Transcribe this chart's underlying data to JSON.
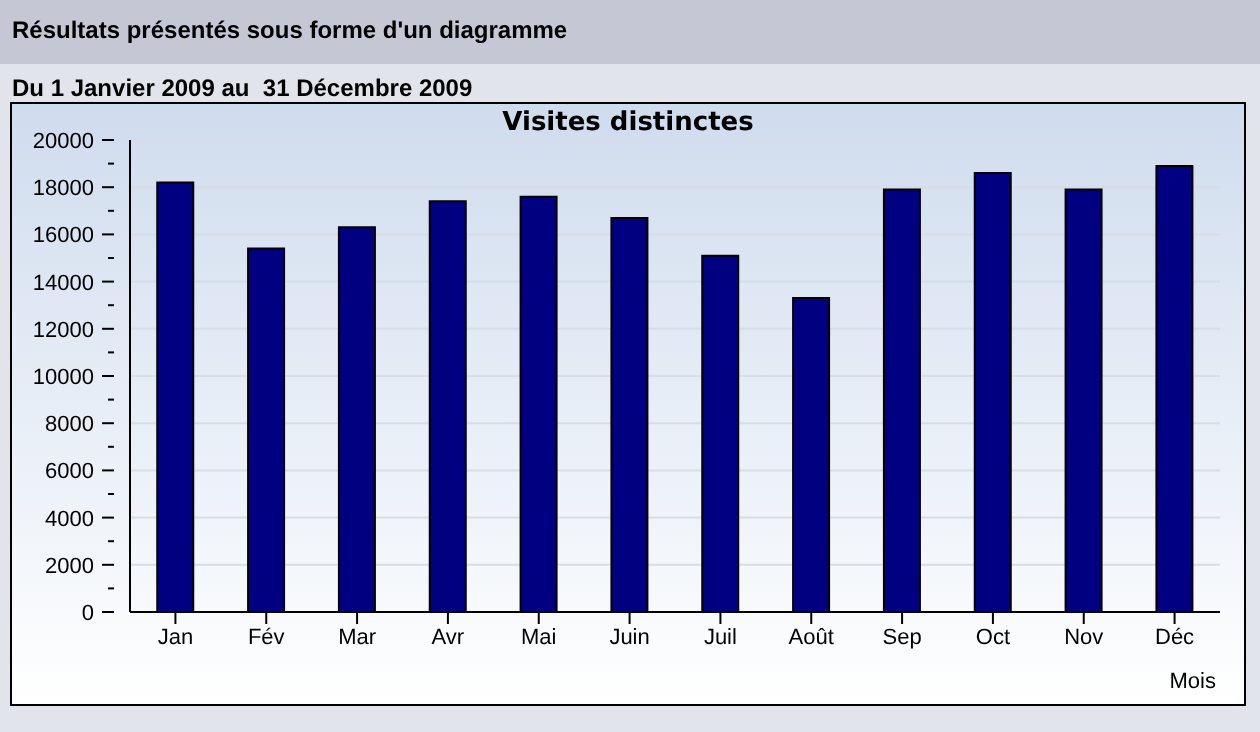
{
  "chart_data": {
    "type": "bar",
    "title": "Visites distinctes",
    "subtitle": "Du 1 Janvier 2009 au  31 Décembre 2009",
    "annotations": [
      "Résultats présentés sous forme d'un diagramme"
    ],
    "xlabel": "Mois",
    "categories": [
      "Jan",
      "Fév",
      "Mar",
      "Avr",
      "Mai",
      "Juin",
      "Juil",
      "Août",
      "Sep",
      "Oct",
      "Nov",
      "Déc"
    ],
    "values": [
      18200,
      15400,
      16300,
      17400,
      17600,
      16700,
      15100,
      13300,
      17900,
      18600,
      17900,
      18900
    ],
    "color": "#000080",
    "ylim": [
      0,
      20000
    ],
    "yticks": [
      0,
      {
        "value": 1000,
        "label": null
      },
      2000,
      {
        "value": 3000,
        "label": null
      },
      4000,
      {
        "value": 5000,
        "label": null
      },
      6000,
      {
        "value": 7000,
        "label": null
      },
      8000,
      {
        "value": 9000,
        "label": null
      },
      10000,
      {
        "value": 11000,
        "label": null
      },
      12000,
      {
        "value": 13000,
        "label": null
      },
      14000,
      {
        "value": 15000,
        "label": null
      },
      16000,
      {
        "value": 17000,
        "label": null
      },
      18000,
      {
        "value": 19000,
        "label": null
      },
      20000
    ],
    "grid": "y"
  }
}
